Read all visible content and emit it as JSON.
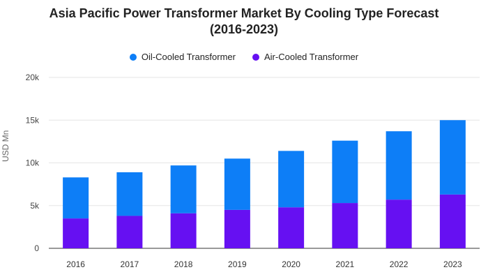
{
  "chart_data": {
    "type": "bar",
    "stacked": true,
    "title_line1": "Asia Pacific Power Transformer Market By Cooling Type Forecast",
    "title_line2": "(2016-2023)",
    "ylabel": "USD Mn",
    "xlabel": "",
    "ylim": [
      0,
      20000
    ],
    "y_ticks": [
      0,
      5000,
      10000,
      15000,
      20000
    ],
    "y_tick_labels": [
      "0",
      "5k",
      "10k",
      "15k",
      "20k"
    ],
    "grid": true,
    "legend_position": "top-center",
    "categories": [
      "2016",
      "2017",
      "2018",
      "2019",
      "2020",
      "2021",
      "2022",
      "2023"
    ],
    "series": [
      {
        "name": "Air-Cooled Transformer",
        "color": "#6610f2",
        "values": [
          3500,
          3800,
          4100,
          4500,
          4800,
          5300,
          5700,
          6300
        ]
      },
      {
        "name": "Oil-Cooled Transformer",
        "color": "#0d7ef7",
        "values": [
          4800,
          5100,
          5600,
          6000,
          6600,
          7300,
          8000,
          8700
        ]
      }
    ],
    "legend_order": [
      "Oil-Cooled Transformer",
      "Air-Cooled Transformer"
    ]
  }
}
